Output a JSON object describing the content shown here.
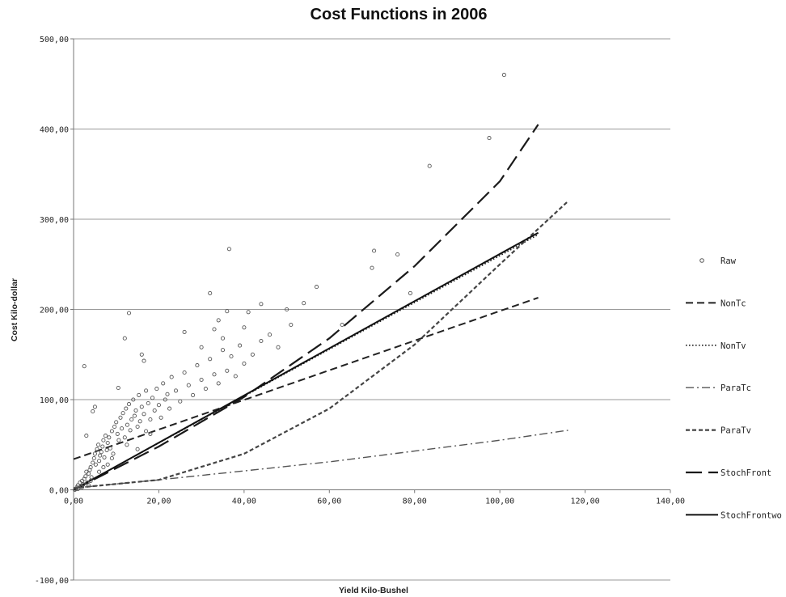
{
  "chart_data": {
    "type": "scatter",
    "title": "Cost Functions in 2006",
    "xlabel": "Yield Kilo-Bushel",
    "ylabel": "Cost Kilo-dollar",
    "xlim": [
      0,
      140
    ],
    "ylim": [
      -100,
      500
    ],
    "x_ticks": [
      "0,00",
      "20,00",
      "40,00",
      "60,00",
      "80,00",
      "100,00",
      "120,00",
      "140,00"
    ],
    "y_ticks": [
      "-100,00",
      "0,00",
      "100,00",
      "200,00",
      "300,00",
      "400,00",
      "500,00"
    ],
    "grid": "horizontal",
    "legend_position": "right",
    "raw": {
      "name": "Raw",
      "points": [
        [
          0.5,
          1
        ],
        [
          0.8,
          3
        ],
        [
          1,
          5
        ],
        [
          1.2,
          2
        ],
        [
          1.5,
          8
        ],
        [
          1.8,
          4
        ],
        [
          2,
          10
        ],
        [
          2.3,
          6
        ],
        [
          2.5,
          12
        ],
        [
          2.8,
          15
        ],
        [
          3,
          20
        ],
        [
          3.2,
          8
        ],
        [
          3.5,
          18
        ],
        [
          3.8,
          22
        ],
        [
          4,
          25
        ],
        [
          4.2,
          14
        ],
        [
          4.5,
          30
        ],
        [
          4.8,
          35
        ],
        [
          5,
          40
        ],
        [
          5.2,
          28
        ],
        [
          5.5,
          45
        ],
        [
          5.8,
          50
        ],
        [
          6,
          32
        ],
        [
          6.2,
          38
        ],
        [
          6.5,
          42
        ],
        [
          6.8,
          48
        ],
        [
          7,
          55
        ],
        [
          7.2,
          36
        ],
        [
          7.5,
          60
        ],
        [
          7.8,
          44
        ],
        [
          8,
          52
        ],
        [
          8.3,
          58
        ],
        [
          8.6,
          46
        ],
        [
          9,
          65
        ],
        [
          9.3,
          40
        ],
        [
          9.6,
          70
        ],
        [
          10,
          75
        ],
        [
          10.3,
          62
        ],
        [
          10.6,
          55
        ],
        [
          11,
          80
        ],
        [
          11.3,
          68
        ],
        [
          11.6,
          85
        ],
        [
          12,
          58
        ],
        [
          12.3,
          90
        ],
        [
          12.6,
          72
        ],
        [
          13,
          95
        ],
        [
          13.3,
          66
        ],
        [
          13.6,
          78
        ],
        [
          14,
          100
        ],
        [
          14.3,
          82
        ],
        [
          14.6,
          88
        ],
        [
          15,
          70
        ],
        [
          15.3,
          105
        ],
        [
          15.6,
          76
        ],
        [
          16,
          92
        ],
        [
          16.5,
          84
        ],
        [
          17,
          110
        ],
        [
          17.5,
          96
        ],
        [
          18,
          78
        ],
        [
          18.5,
          102
        ],
        [
          19,
          88
        ],
        [
          19.5,
          112
        ],
        [
          20,
          94
        ],
        [
          20.5,
          80
        ],
        [
          21,
          118
        ],
        [
          21.5,
          100
        ],
        [
          22,
          106
        ],
        [
          22.5,
          90
        ],
        [
          23,
          125
        ],
        [
          24,
          110
        ],
        [
          25,
          98
        ],
        [
          26,
          130
        ],
        [
          27,
          116
        ],
        [
          28,
          105
        ],
        [
          29,
          138
        ],
        [
          30,
          122
        ],
        [
          31,
          112
        ],
        [
          32,
          145
        ],
        [
          33,
          128
        ],
        [
          34,
          118
        ],
        [
          35,
          155
        ],
        [
          36,
          132
        ],
        [
          37,
          148
        ],
        [
          38,
          126
        ],
        [
          39,
          160
        ],
        [
          40,
          140
        ],
        [
          42,
          150
        ],
        [
          44,
          165
        ],
        [
          46,
          172
        ],
        [
          48,
          158
        ],
        [
          2.5,
          137
        ],
        [
          3,
          60
        ],
        [
          5,
          92
        ],
        [
          4.5,
          87
        ],
        [
          10.5,
          113
        ],
        [
          12,
          168
        ],
        [
          13,
          196
        ],
        [
          16,
          150
        ],
        [
          16.5,
          143
        ],
        [
          26,
          175
        ],
        [
          30,
          158
        ],
        [
          32,
          218
        ],
        [
          33,
          178
        ],
        [
          34,
          188
        ],
        [
          35,
          168
        ],
        [
          36,
          198
        ],
        [
          36.5,
          267
        ],
        [
          40,
          180
        ],
        [
          41,
          197
        ],
        [
          44,
          206
        ],
        [
          50,
          200
        ],
        [
          51,
          183
        ],
        [
          54,
          207
        ],
        [
          57,
          225
        ],
        [
          63,
          183
        ],
        [
          70,
          246
        ],
        [
          70.5,
          265
        ],
        [
          76,
          261
        ],
        [
          79,
          218
        ],
        [
          83.5,
          359
        ],
        [
          97.5,
          390
        ],
        [
          101,
          460
        ],
        [
          12.5,
          50
        ],
        [
          15,
          45
        ],
        [
          17,
          65
        ],
        [
          18,
          62
        ],
        [
          6,
          20
        ],
        [
          7,
          25
        ],
        [
          8,
          28
        ],
        [
          9,
          35
        ],
        [
          3.5,
          5
        ],
        [
          4,
          10
        ],
        [
          2,
          3
        ],
        [
          1,
          1
        ],
        [
          0.3,
          0
        ]
      ]
    },
    "series": [
      {
        "name": "NonTc",
        "style": "short-dash",
        "x": [
          0,
          109
        ],
        "y": [
          34,
          213
        ]
      },
      {
        "name": "NonTv",
        "style": "dotted",
        "x": [
          0,
          109
        ],
        "y": [
          0,
          283
        ]
      },
      {
        "name": "ParaTc",
        "style": "dash-dot",
        "x": [
          0,
          20,
          40,
          60,
          80,
          100,
          116
        ],
        "y": [
          2,
          11,
          21,
          31,
          43,
          55,
          66
        ]
      },
      {
        "name": "ParaTv",
        "style": "medium-dash",
        "x": [
          0,
          20,
          40,
          60,
          80,
          100,
          116
        ],
        "y": [
          2,
          11,
          40,
          90,
          161,
          250,
          320
        ]
      },
      {
        "name": "StochFront",
        "style": "long-dash",
        "x": [
          0,
          20,
          40,
          60,
          80,
          100,
          109
        ],
        "y": [
          0,
          48,
          103,
          168,
          248,
          342,
          405
        ]
      },
      {
        "name": "StochFrontwo",
        "style": "solid",
        "x": [
          0,
          109
        ],
        "y": [
          0,
          285
        ]
      }
    ]
  }
}
